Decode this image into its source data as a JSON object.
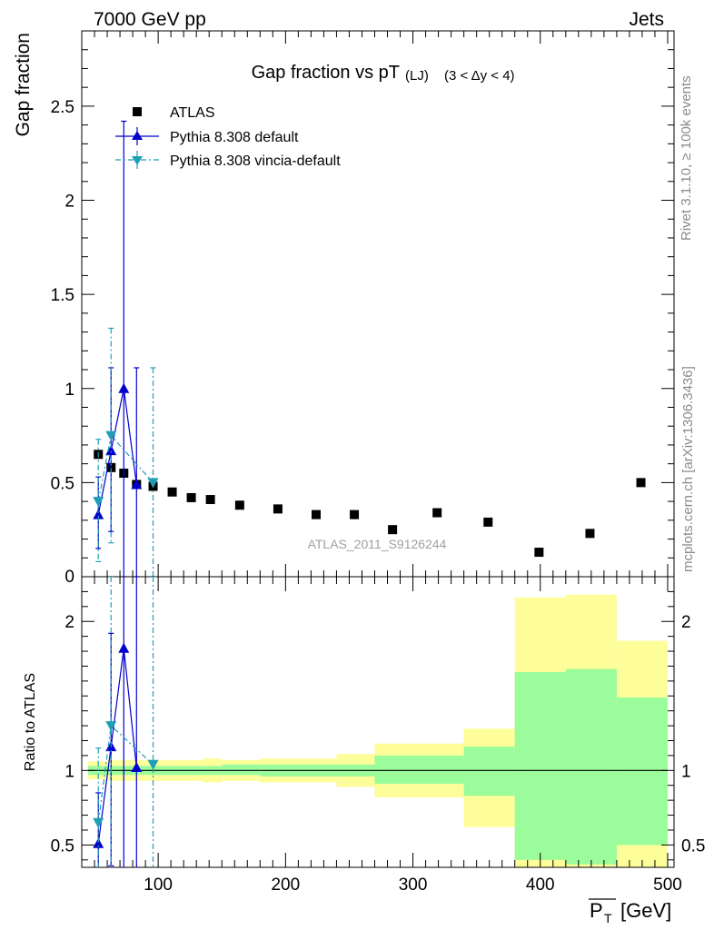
{
  "header": {
    "left": "7000 GeV pp",
    "right": "Jets"
  },
  "side_labels": {
    "rivet": "Rivet 3.1.10, ≥ 100k events",
    "mcplots": "mcplots.cern.ch [arXiv:1306.3436]"
  },
  "colors": {
    "atlas": "#000000",
    "default": "#0000cc",
    "vincia": "#1e9fb5",
    "band_inner": "#9bfc9b",
    "band_outer": "#fdfd9a"
  },
  "chart_data": [
    {
      "type": "scatter",
      "title_main": "Gap fraction vs pT",
      "title_sub": "(LJ)",
      "title_range": "(3 < Δy < 4)",
      "watermark": "ATLAS_2011_S9126244",
      "ylabel": "Gap fraction",
      "xlim": [
        40,
        505
      ],
      "ylim": [
        0,
        2.9
      ],
      "yticks": [
        0.5,
        1,
        1.5,
        2,
        2.5
      ],
      "ytick_labels": [
        "0.5",
        "1",
        "1.5",
        "2",
        "2.5"
      ],
      "y_min_label": "0",
      "legend_placement": "top-left",
      "series": [
        {
          "name": "ATLAS",
          "marker": "square",
          "x": [
            53,
            63,
            73,
            83,
            96,
            111,
            126,
            141,
            164,
            194,
            224,
            254,
            284,
            319,
            359,
            399,
            439,
            479
          ],
          "y": [
            0.65,
            0.58,
            0.55,
            0.49,
            0.48,
            0.45,
            0.42,
            0.41,
            0.38,
            0.36,
            0.33,
            0.33,
            0.25,
            0.34,
            0.29,
            0.13,
            0.23,
            0.5
          ]
        },
        {
          "name": "Pythia 8.308 default",
          "marker": "triangle-up",
          "line": "solid",
          "x": [
            53,
            63,
            73,
            83
          ],
          "y": [
            0.33,
            0.67,
            1.0,
            0.49
          ],
          "yerr_low": [
            0.18,
            0.43,
            1.0,
            0.49
          ],
          "yerr_high": [
            0.2,
            0.44,
            1.42,
            0.62
          ]
        },
        {
          "name": "Pythia 8.308 vincia-default",
          "marker": "triangle-down",
          "line": "dash-dot",
          "x": [
            53,
            63,
            96
          ],
          "y": [
            0.4,
            0.75,
            0.5
          ],
          "yerr_low": [
            0.32,
            0.57,
            0.5
          ],
          "yerr_high": [
            0.33,
            0.57,
            0.61
          ]
        }
      ]
    },
    {
      "type": "ratio",
      "ylabel": "Ratio to ATLAS",
      "xlabel_main": "P",
      "xlabel_sub": "T",
      "xlabel_unit": "[GeV]",
      "xlim": [
        40,
        505
      ],
      "ylim": [
        0.35,
        2.3
      ],
      "yticks": [
        0.5,
        1,
        2
      ],
      "ytick_labels": [
        "0.5",
        "1",
        "2"
      ],
      "xticks": [
        100,
        200,
        300,
        400,
        500
      ],
      "xtick_labels": [
        "100",
        "200",
        "300",
        "400",
        "500"
      ],
      "bands": {
        "edges": [
          45,
          60,
          70,
          80,
          90,
          105,
          120,
          135,
          150,
          180,
          210,
          240,
          270,
          340,
          380,
          420,
          460,
          500
        ],
        "inner_low": [
          0.97,
          0.97,
          0.97,
          0.97,
          0.97,
          0.97,
          0.97,
          0.97,
          0.97,
          0.96,
          0.96,
          0.96,
          0.91,
          0.83,
          0.4,
          0.37,
          0.5
        ],
        "inner_high": [
          1.03,
          1.03,
          1.03,
          1.03,
          1.03,
          1.03,
          1.03,
          1.03,
          1.04,
          1.04,
          1.04,
          1.04,
          1.1,
          1.16,
          1.66,
          1.68,
          1.49
        ],
        "outer_low": [
          0.94,
          0.93,
          0.93,
          0.93,
          0.93,
          0.93,
          0.93,
          0.92,
          0.93,
          0.92,
          0.92,
          0.89,
          0.82,
          0.62,
          0.25,
          0.22,
          0.25
        ],
        "outer_high": [
          1.06,
          1.07,
          1.07,
          1.07,
          1.07,
          1.07,
          1.07,
          1.08,
          1.07,
          1.08,
          1.08,
          1.11,
          1.18,
          1.28,
          2.16,
          2.18,
          1.87
        ]
      },
      "series": [
        {
          "name": "Pythia 8.308 default",
          "x": [
            53,
            63,
            73,
            83
          ],
          "y": [
            0.51,
            1.16,
            1.82,
            1.02
          ],
          "yerr_low": [
            0.33,
            0.8,
            1.6,
            1.0
          ],
          "yerr_high": [
            0.34,
            0.76,
            0.9,
            1.28
          ]
        },
        {
          "name": "Pythia 8.308 vincia-default",
          "x": [
            53,
            63,
            96
          ],
          "y": [
            0.65,
            1.3,
            1.04
          ],
          "yerr_low": [
            0.5,
            1.0,
            1.0
          ],
          "yerr_high": [
            0.5,
            1.0,
            1.26
          ]
        }
      ]
    }
  ]
}
